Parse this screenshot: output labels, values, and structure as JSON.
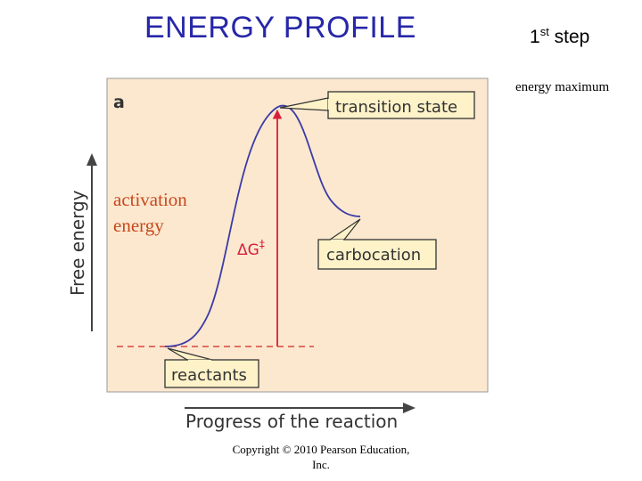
{
  "header": {
    "title": "ENERGY PROFILE",
    "step_number": "1",
    "step_suffix": "st",
    "step_word": " step",
    "max_note": "energy maximum"
  },
  "diagram": {
    "panel_label": "a",
    "y_axis_label": "Free energy",
    "x_axis_label": "Progress of the reaction",
    "callouts": {
      "transition_state": "transition state",
      "carbocation": "carbocation",
      "reactants": "reactants"
    },
    "delta_g_symbol": "ΔG",
    "delta_g_superscript": "‡",
    "activation_line1": "activation",
    "activation_line2": "energy"
  },
  "footer": {
    "copyright_line1": "Copyright © 2010 Pearson Education,",
    "copyright_line2": "Inc."
  },
  "colors": {
    "panel_bg": "#fbe8cf",
    "curve": "#3b3ba8",
    "arrow": "#d81e3a",
    "title": "#2727a8",
    "callout_bg": "#fdf2c8"
  }
}
